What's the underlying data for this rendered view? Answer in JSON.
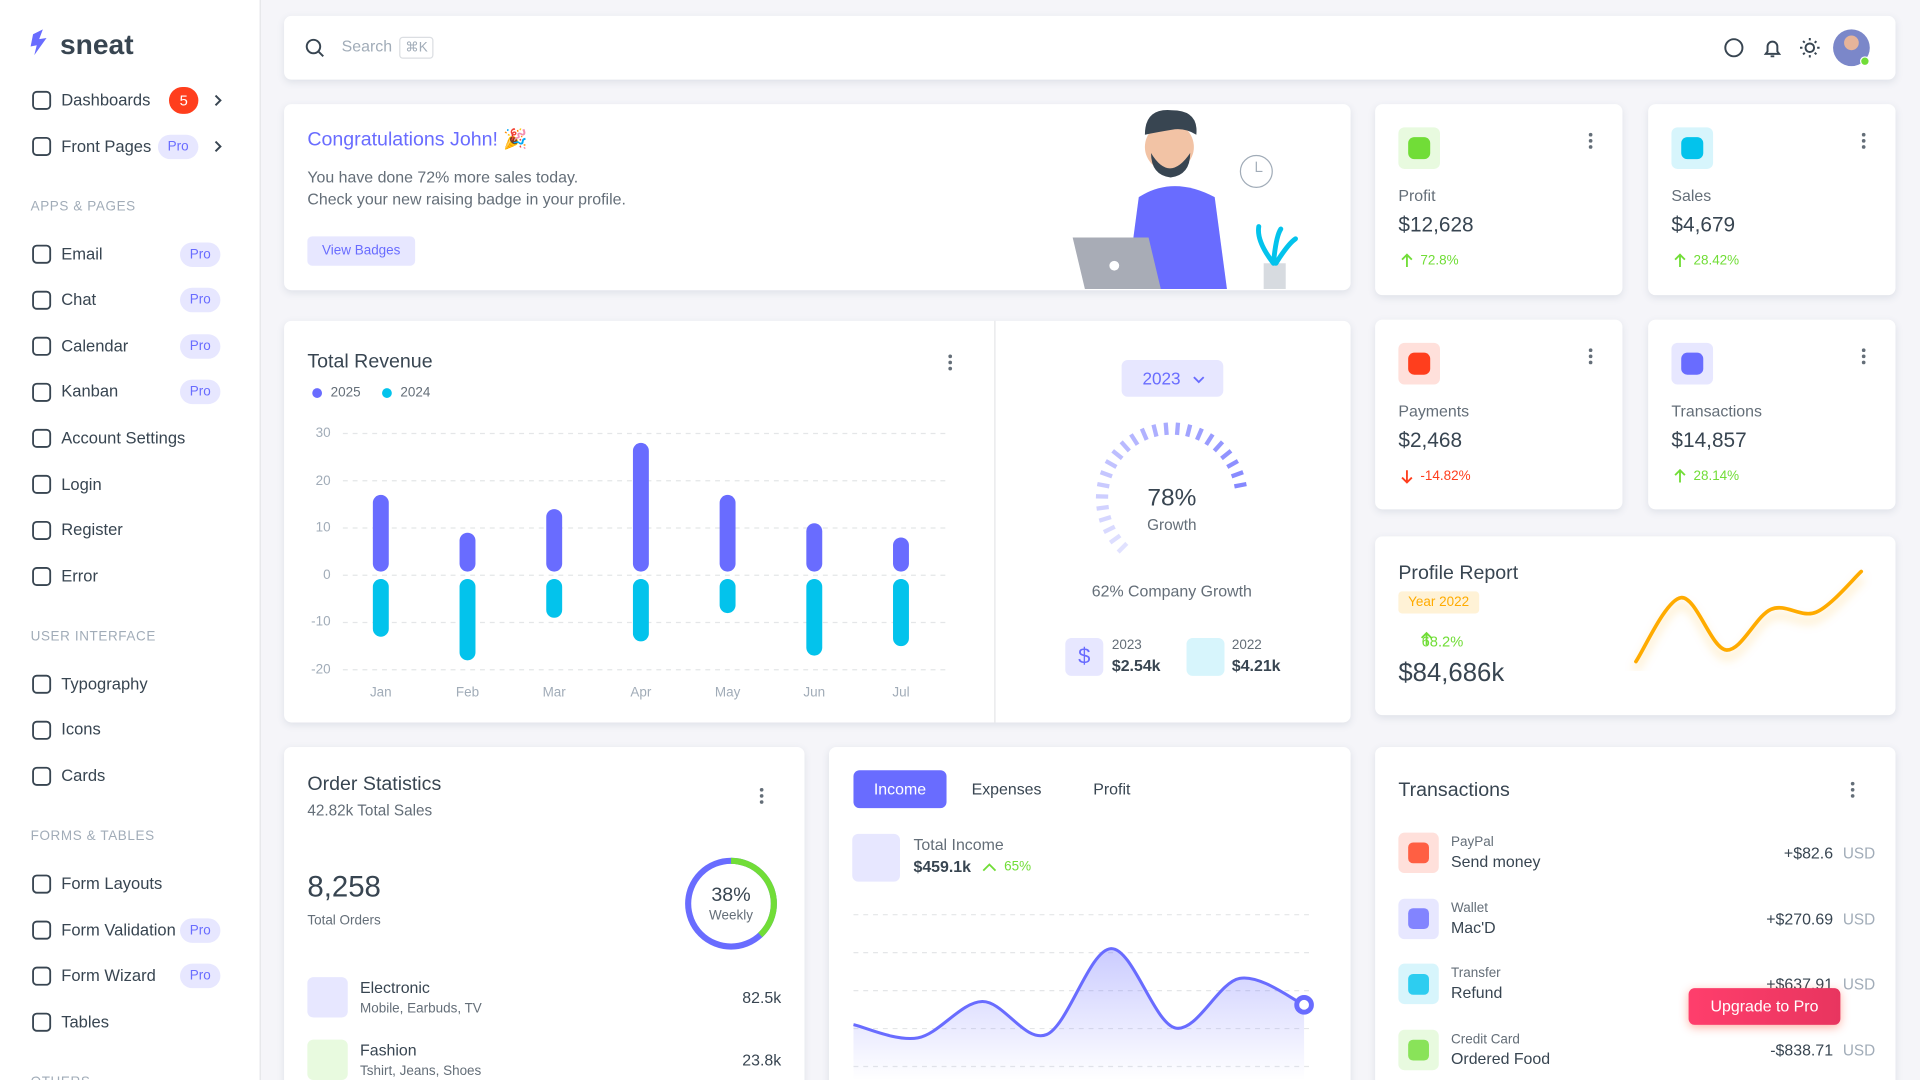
{
  "sidebar": {
    "brand": "sneat",
    "groups": [
      {
        "items": [
          {
            "label": "Dashboards",
            "badge": "5"
          },
          {
            "label": "Front Pages",
            "badge": "Pro"
          }
        ]
      },
      {
        "title": "APPS & PAGES",
        "items": [
          {
            "label": "Email",
            "badge": "Pro"
          },
          {
            "label": "Chat",
            "badge": "Pro"
          },
          {
            "label": "Calendar",
            "badge": "Pro"
          },
          {
            "label": "Kanban",
            "badge": "Pro"
          },
          {
            "label": "Account Settings"
          },
          {
            "label": "Login"
          },
          {
            "label": "Register"
          },
          {
            "label": "Error"
          }
        ]
      },
      {
        "title": "USER INTERFACE",
        "items": [
          {
            "label": "Typography"
          },
          {
            "label": "Icons"
          },
          {
            "label": "Cards"
          }
        ]
      },
      {
        "title": "FORMS & TABLES",
        "items": [
          {
            "label": "Form Layouts"
          },
          {
            "label": "Form Validation",
            "badge": "Pro"
          },
          {
            "label": "Form Wizard",
            "badge": "Pro"
          },
          {
            "label": "Tables"
          }
        ]
      },
      {
        "title": "OTHERS",
        "items": []
      }
    ]
  },
  "navbar": {
    "search_placeholder": "Search",
    "shortcut": "⌘K"
  },
  "welcome": {
    "title": "Congratulations John! 🎉",
    "lines": [
      "You have done 72% more sales today.",
      "Check your new raising badge in your profile."
    ],
    "button": "View Badges"
  },
  "stats": [
    {
      "label": "Profit",
      "value": "$12,628",
      "change": "72.8%"
    },
    {
      "label": "Sales",
      "value": "$4,679",
      "change": "28.42%"
    },
    {
      "label": "Payments",
      "value": "$2,468",
      "change": "-14.82%"
    },
    {
      "label": "Transactions",
      "value": "$14,857",
      "change": "28.14%"
    }
  ],
  "revenue": {
    "title": "Total Revenue",
    "type": "bar",
    "categories": [
      "Jan",
      "Feb",
      "Mar",
      "Apr",
      "May",
      "Jun",
      "Jul"
    ],
    "series": [
      {
        "name": "2025",
        "color": "#696cff",
        "values": [
          17,
          9,
          14,
          28,
          17,
          11,
          8
        ]
      },
      {
        "name": "2024",
        "color": "#03c3ec",
        "values": [
          -13,
          -18,
          -9,
          -14,
          -8,
          -17,
          -15
        ]
      }
    ],
    "ylim": [
      -20,
      30
    ],
    "yticks": [
      30,
      20,
      10,
      0,
      -10,
      -20
    ],
    "grid": true
  },
  "growth": {
    "year_button": "2023",
    "type": "gauge",
    "value": 78,
    "value_label": "78%",
    "label": "Growth",
    "caption": "62% Company Growth",
    "items": [
      {
        "year": "2023",
        "amount": "$2.54k"
      },
      {
        "year": "2022",
        "amount": "$4.21k"
      }
    ]
  },
  "profile_report": {
    "title": "Profile Report",
    "badge": "Year 2022",
    "change": "68.2%",
    "value": "$84,686k",
    "chart": {
      "type": "line",
      "values": [
        2,
        24,
        6,
        20,
        19,
        33
      ],
      "ylim": [
        0,
        35
      ],
      "color": "#ffab00"
    }
  },
  "order_statistics": {
    "title": "Order Statistics",
    "subtitle": "42.82k Total Sales",
    "total": "8,258",
    "total_label": "Total Orders",
    "chart": {
      "type": "donut",
      "value": 38,
      "value_label": "38%",
      "label": "Weekly"
    },
    "items": [
      {
        "name": "Electronic",
        "detail": "Mobile, Earbuds, TV",
        "value": "82.5k"
      },
      {
        "name": "Fashion",
        "detail": "Tshirt, Jeans, Shoes",
        "value": "23.8k"
      }
    ]
  },
  "income": {
    "tabs": [
      "Income",
      "Expenses",
      "Profit"
    ],
    "label": "Total Income",
    "amount": "$459.1k",
    "change": "65%",
    "chart": {
      "type": "area",
      "values": [
        16,
        12,
        23,
        13,
        39,
        15,
        30,
        22
      ],
      "ylim": [
        0,
        50
      ],
      "color": "#696cff"
    }
  },
  "transactions": {
    "title": "Transactions",
    "items": [
      {
        "method": "PayPal",
        "description": "Send money",
        "amount": "+$82.6",
        "currency": "USD"
      },
      {
        "method": "Wallet",
        "description": "Mac'D",
        "amount": "+$270.69",
        "currency": "USD"
      },
      {
        "method": "Transfer",
        "description": "Refund",
        "amount": "+$637.91",
        "currency": "USD"
      },
      {
        "method": "Credit Card",
        "description": "Ordered Food",
        "amount": "-$838.71",
        "currency": "USD"
      }
    ]
  },
  "upgrade_button": "Upgrade to Pro"
}
